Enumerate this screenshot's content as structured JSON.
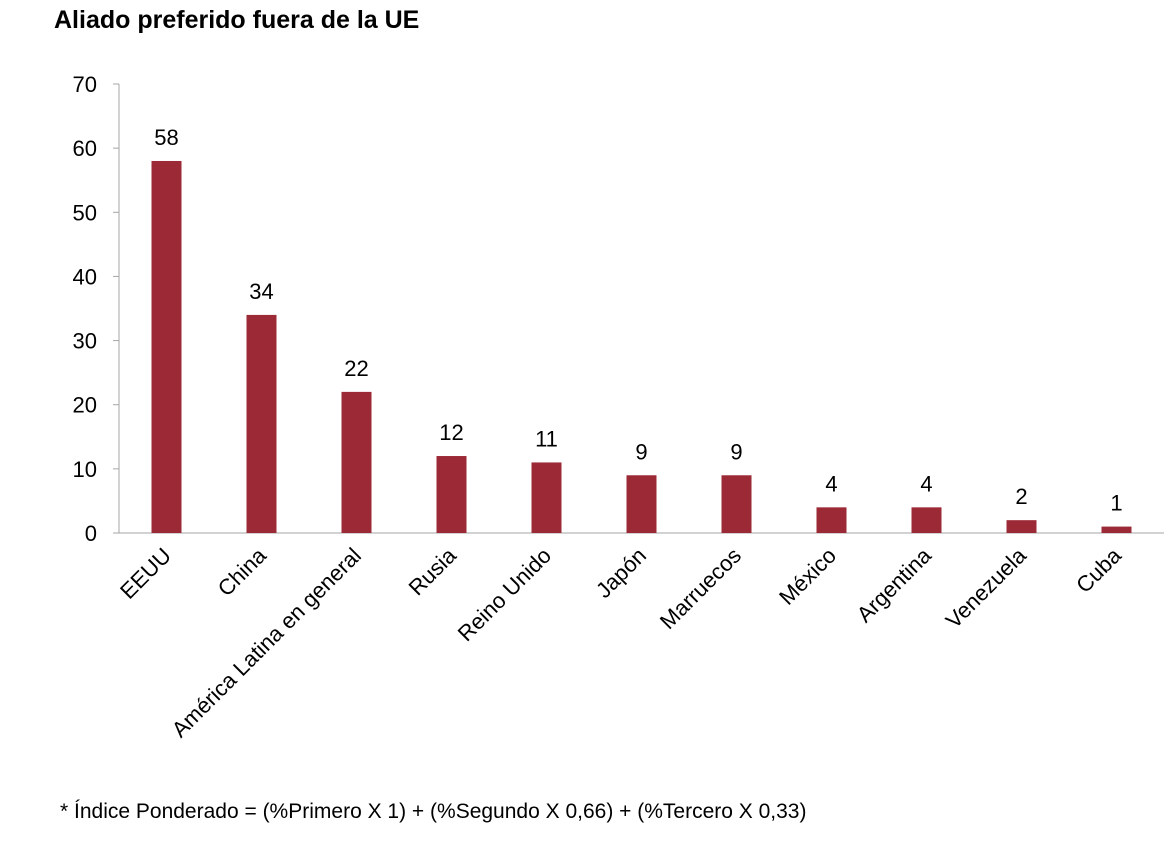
{
  "chart_data": {
    "type": "bar",
    "title": "Aliado preferido fuera de la UE",
    "xlabel": "",
    "ylabel": "",
    "ylim": [
      0,
      70
    ],
    "yticks": [
      0,
      10,
      20,
      30,
      40,
      50,
      60,
      70
    ],
    "grid": false,
    "legend": "none",
    "bar_color": "#9B2A36",
    "categories": [
      "EEUU",
      "China",
      "América Latina en general",
      "Rusia",
      "Reino Unido",
      "Japón",
      "Marruecos",
      "México",
      "Argentina",
      "Venezuela",
      "Cuba"
    ],
    "values": [
      58,
      34,
      22,
      12,
      11,
      9,
      9,
      4,
      4,
      2,
      1
    ],
    "footnote": "* Índice Ponderado = (%Primero X 1) + (%Segundo X 0,66) + (%Tercero X 0,33)"
  }
}
